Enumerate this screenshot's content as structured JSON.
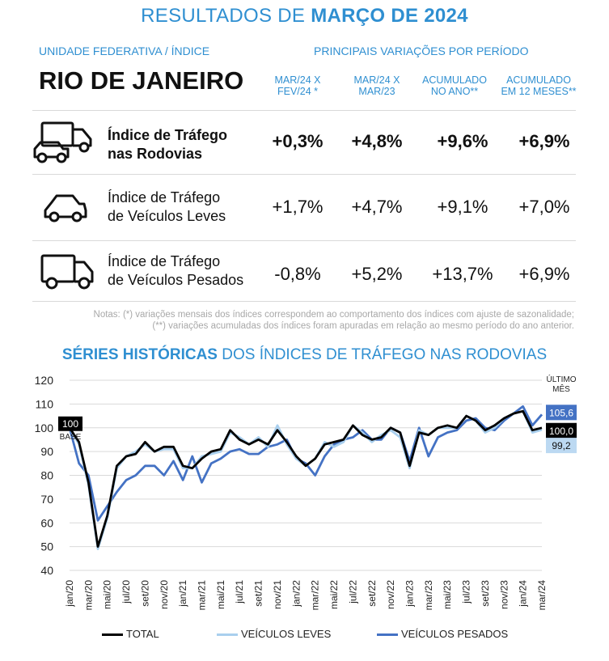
{
  "header": {
    "title_prefix": "RESULTADOS DE ",
    "title_bold": "MARÇO DE 2024",
    "left_label": "UNIDADE FEDERATIVA / ÍNDICE",
    "right_label": "PRINCIPAIS VARIAÇÕES POR PERÍODO",
    "state": "RIO DE JANEIRO"
  },
  "columns": [
    {
      "line1": "MAR/24 X",
      "line2": "FEV/24 *"
    },
    {
      "line1": "MAR/24 X",
      "line2": "MAR/23"
    },
    {
      "line1": "ACUMULADO",
      "line2": "NO ANO**"
    },
    {
      "line1": "ACUMULADO",
      "line2": "EM 12 MESES**"
    }
  ],
  "rows": [
    {
      "line1": "Índice de Tráfego",
      "line2": "nas Rodovias",
      "icon": "truck-and-car-icon",
      "values": [
        "+0,3%",
        "+4,8%",
        "+9,6%",
        "+6,9%"
      ]
    },
    {
      "line1": "Índice de Tráfego",
      "line2": "de Veículos Leves",
      "icon": "car-icon",
      "values": [
        "+1,7%",
        "+4,7%",
        "+9,1%",
        "+7,0%"
      ]
    },
    {
      "line1": "Índice de Tráfego",
      "line2": "de Veículos Pesados",
      "icon": "truck-icon",
      "values": [
        "-0,8%",
        "+5,2%",
        "+13,7%",
        "+6,9%"
      ]
    }
  ],
  "notes": {
    "line1": "Notas: (*) variações mensais dos índices correspondem ao comportamento dos índices com ajuste de sazonalidade;",
    "line2": "(**) variações acumuladas dos índices foram apuradas em relação ao mesmo período do ano anterior."
  },
  "chart_title": {
    "bold": "SÉRIES HISTÓRICAS",
    "rest": " DOS ÍNDICES DE TRÁFEGO NAS RODOVIAS"
  },
  "colors": {
    "accent": "#2f8fd1",
    "total": "#000000",
    "leves": "#a9cfee",
    "pesados": "#4472c4"
  },
  "chart_data": {
    "type": "line",
    "title": "SÉRIES HISTÓRICAS DOS ÍNDICES DE TRÁFEGO NAS RODOVIAS",
    "xlabel": "",
    "ylabel": "",
    "ylim": [
      40,
      120
    ],
    "yticks": [
      40,
      50,
      60,
      70,
      80,
      90,
      100,
      110,
      120
    ],
    "grid": true,
    "legend_position": "bottom",
    "x": [
      "jan/20",
      "fev/20",
      "mar/20",
      "abr/20",
      "mai/20",
      "jun/20",
      "jul/20",
      "ago/20",
      "set/20",
      "out/20",
      "nov/20",
      "dez/20",
      "jan/21",
      "fev/21",
      "mar/21",
      "abr/21",
      "mai/21",
      "jun/21",
      "jul/21",
      "ago/21",
      "set/21",
      "out/21",
      "nov/21",
      "dez/21",
      "jan/22",
      "fev/22",
      "mar/22",
      "abr/22",
      "mai/22",
      "jun/22",
      "jul/22",
      "ago/22",
      "set/22",
      "out/22",
      "nov/22",
      "dez/22",
      "jan/23",
      "fev/23",
      "mar/23",
      "abr/23",
      "mai/23",
      "jun/23",
      "jul/23",
      "ago/23",
      "set/23",
      "out/23",
      "nov/23",
      "dez/23",
      "jan/24",
      "fev/24",
      "mar/24"
    ],
    "tick_labels": [
      "jan/20",
      "mar/20",
      "mai/20",
      "jul/20",
      "set/20",
      "nov/20",
      "jan/21",
      "mar/21",
      "mai/21",
      "jul/21",
      "set/21",
      "nov/21",
      "jan/22",
      "mar/22",
      "mai/22",
      "jul/22",
      "set/22",
      "nov/22",
      "jan/23",
      "mar/23",
      "mai/23",
      "jul/23",
      "set/23",
      "nov/23",
      "jan/24",
      "mar/24"
    ],
    "base_label": {
      "value": "100",
      "text": "BASE"
    },
    "last_month_label": {
      "line1": "ÚLTIMO",
      "line2": "MÊS"
    },
    "series": [
      {
        "name": "TOTAL",
        "end_label": "100,0",
        "values": [
          100,
          94,
          77,
          50,
          63,
          84,
          88,
          89,
          94,
          90,
          92,
          92,
          84,
          83,
          87,
          90,
          91,
          99,
          95,
          93,
          95,
          93,
          99,
          94,
          88,
          84,
          87,
          93,
          94,
          95,
          101,
          97,
          95,
          96,
          100,
          98,
          84,
          98,
          97,
          100,
          101,
          100,
          105,
          103,
          99,
          101,
          104,
          106,
          107,
          99,
          100
        ]
      },
      {
        "name": "VEÍCULOS LEVES",
        "end_label": "99,2",
        "values": [
          100,
          93,
          76,
          49,
          62,
          83,
          88,
          90,
          93,
          90,
          91,
          91,
          83,
          83,
          88,
          89,
          90,
          98,
          96,
          93,
          96,
          92,
          101,
          93,
          87,
          84,
          87,
          94,
          92,
          94,
          101,
          98,
          94,
          97,
          99,
          96,
          83,
          99,
          97,
          100,
          100,
          100,
          105,
          103,
          98,
          100,
          104,
          106,
          107,
          98,
          99.2
        ]
      },
      {
        "name": "VEÍCULOS PESADOS",
        "end_label": "105,6",
        "values": [
          100,
          85,
          80,
          61,
          67,
          73,
          78,
          80,
          84,
          84,
          80,
          86,
          78,
          88,
          77,
          85,
          87,
          90,
          91,
          89,
          89,
          92,
          93,
          95,
          87,
          85,
          80,
          88,
          93,
          95,
          96,
          99,
          95,
          95,
          100,
          98,
          86,
          100,
          88,
          96,
          98,
          99,
          103,
          104,
          100,
          99,
          103,
          106,
          109,
          101,
          105.6
        ]
      }
    ]
  }
}
